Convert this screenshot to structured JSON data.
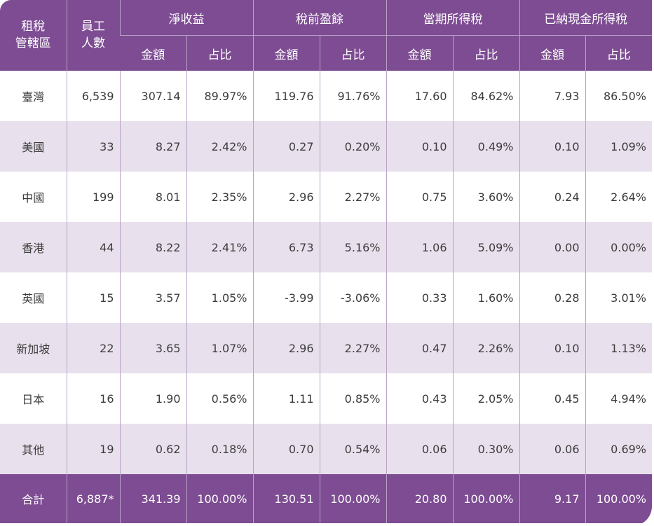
{
  "header": {
    "jurisdiction": [
      "租稅",
      "管轄區"
    ],
    "employees": [
      "員工",
      "人數"
    ],
    "groups": [
      "淨收益",
      "稅前盈餘",
      "當期所得稅",
      "已納現金所得稅"
    ],
    "amount": "金額",
    "ratio": "占比"
  },
  "rows": [
    {
      "region": "臺灣",
      "employees": "6,539",
      "values": [
        "307.14",
        "89.97%",
        "119.76",
        "91.76%",
        "17.60",
        "84.62%",
        "7.93",
        "86.50%"
      ]
    },
    {
      "region": "美國",
      "employees": "33",
      "values": [
        "8.27",
        "2.42%",
        "0.27",
        "0.20%",
        "0.10",
        "0.49%",
        "0.10",
        "1.09%"
      ]
    },
    {
      "region": "中國",
      "employees": "199",
      "values": [
        "8.01",
        "2.35%",
        "2.96",
        "2.27%",
        "0.75",
        "3.60%",
        "0.24",
        "2.64%"
      ]
    },
    {
      "region": "香港",
      "employees": "44",
      "values": [
        "8.22",
        "2.41%",
        "6.73",
        "5.16%",
        "1.06",
        "5.09%",
        "0.00",
        "0.00%"
      ]
    },
    {
      "region": "英國",
      "employees": "15",
      "values": [
        "3.57",
        "1.05%",
        "-3.99",
        "-3.06%",
        "0.33",
        "1.60%",
        "0.28",
        "3.01%"
      ]
    },
    {
      "region": "新加坡",
      "employees": "22",
      "values": [
        "3.65",
        "1.07%",
        "2.96",
        "2.27%",
        "0.47",
        "2.26%",
        "0.10",
        "1.13%"
      ]
    },
    {
      "region": "日本",
      "employees": "16",
      "values": [
        "1.90",
        "0.56%",
        "1.11",
        "0.85%",
        "0.43",
        "2.05%",
        "0.45",
        "4.94%"
      ]
    },
    {
      "region": "其他",
      "employees": "19",
      "values": [
        "0.62",
        "0.18%",
        "0.70",
        "0.54%",
        "0.06",
        "0.30%",
        "0.06",
        "0.69%"
      ]
    }
  ],
  "total": {
    "label": "合計",
    "employees": "6,887*",
    "values": [
      "341.39",
      "100.00%",
      "130.51",
      "100.00%",
      "20.80",
      "100.00%",
      "9.17",
      "100.00%"
    ]
  },
  "colors": {
    "header_bg": "#7d4c92",
    "stripe_bg": "#e9e0ed",
    "divider": "#b9a3c6"
  }
}
